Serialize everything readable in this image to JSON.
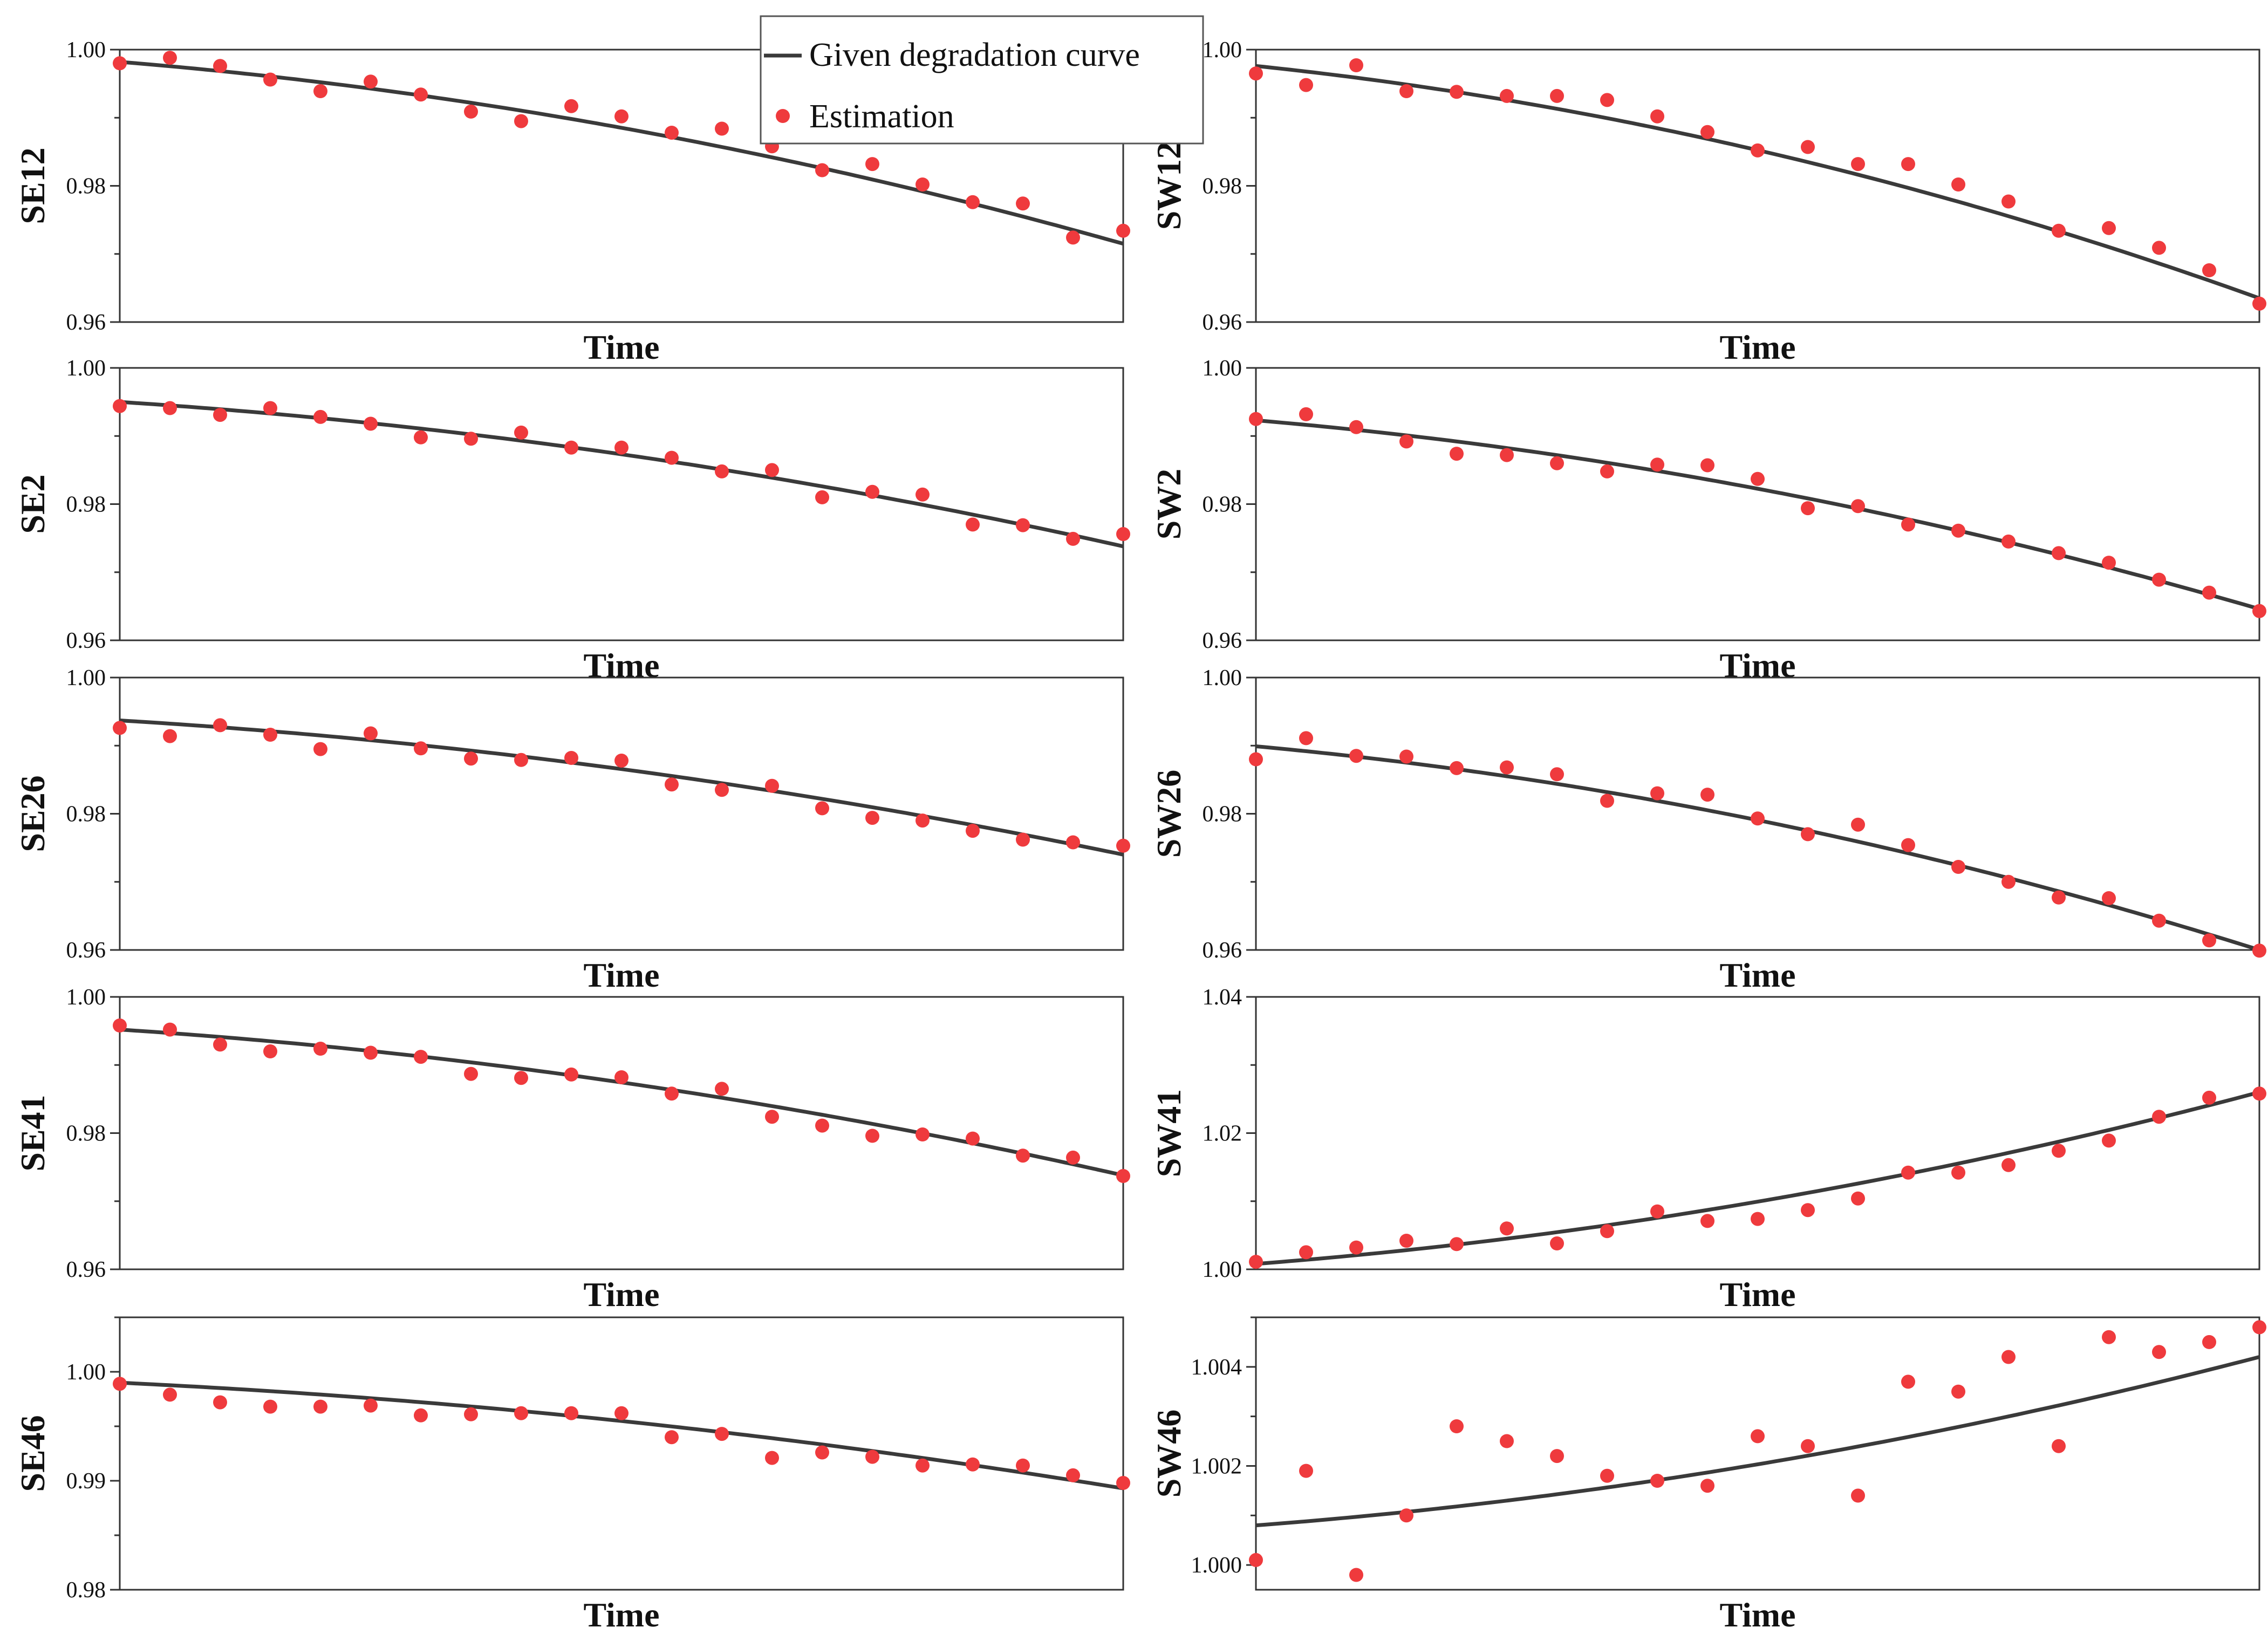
{
  "colors": {
    "curve": "#3a3a3a",
    "estimation": "#ef3a3d",
    "frame": "#333333"
  },
  "legend": {
    "curve_label": "Given degradation curve",
    "points_label": "Estimation"
  },
  "chart_data": [
    {
      "type": "line+scatter",
      "panel": "SE12",
      "title": "",
      "xlabel": "Time",
      "ylabel": "SE12",
      "ylim": [
        0.96,
        1.0
      ],
      "yticks": [
        0.96,
        0.98,
        1.0
      ],
      "yticklabels": [
        "0.96",
        "0.98",
        "1.00"
      ],
      "x": [
        0,
        1,
        2,
        3,
        4,
        5,
        6,
        7,
        8,
        9,
        10,
        11,
        12,
        13,
        14,
        15,
        16,
        17,
        18,
        19,
        20
      ],
      "series": [
        {
          "name": "Given degradation curve",
          "kind": "line",
          "x0": 0,
          "x1": 20,
          "y0": 0.9982,
          "y1": 0.9715
        },
        {
          "name": "Estimation",
          "kind": "scatter",
          "values": [
            0.998,
            0.9988,
            0.9976,
            0.9956,
            0.9939,
            0.9953,
            0.9934,
            0.9909,
            0.9895,
            0.9917,
            0.9902,
            0.9878,
            0.9884,
            0.9858,
            0.9823,
            0.9832,
            0.9802,
            0.9776,
            0.9774,
            0.9724,
            0.9734
          ]
        }
      ]
    },
    {
      "type": "line+scatter",
      "panel": "SW12",
      "title": "",
      "xlabel": "Time",
      "ylabel": "SW12",
      "ylim": [
        0.96,
        1.0
      ],
      "yticks": [
        0.96,
        0.98,
        1.0
      ],
      "yticklabels": [
        "0.96",
        "0.98",
        "1.00"
      ],
      "x": [
        0,
        1,
        2,
        3,
        4,
        5,
        6,
        7,
        8,
        9,
        10,
        11,
        12,
        13,
        14,
        15,
        16,
        17,
        18,
        19,
        20
      ],
      "series": [
        {
          "name": "Given degradation curve",
          "kind": "line",
          "x0": 0,
          "x1": 20,
          "y0": 0.9976,
          "y1": 0.9635
        },
        {
          "name": "Estimation",
          "kind": "scatter",
          "values": [
            0.9965,
            0.9948,
            0.9977,
            0.9939,
            0.9938,
            0.9932,
            0.9932,
            0.9926,
            0.9902,
            0.9879,
            0.9852,
            0.9857,
            0.9832,
            0.9832,
            0.9802,
            0.9777,
            0.9734,
            0.9738,
            0.9709,
            0.9676,
            0.9627
          ]
        }
      ]
    },
    {
      "type": "line+scatter",
      "panel": "SE2",
      "title": "",
      "xlabel": "Time",
      "ylabel": "SE2",
      "ylim": [
        0.96,
        1.0
      ],
      "yticks": [
        0.96,
        0.98,
        1.0
      ],
      "yticklabels": [
        "0.96",
        "0.98",
        "1.00"
      ],
      "x": [
        0,
        1,
        2,
        3,
        4,
        5,
        6,
        7,
        8,
        9,
        10,
        11,
        12,
        13,
        14,
        15,
        16,
        17,
        18,
        19,
        20
      ],
      "series": [
        {
          "name": "Given degradation curve",
          "kind": "line",
          "x0": 0,
          "x1": 20,
          "y0": 0.995,
          "y1": 0.9738
        },
        {
          "name": "Estimation",
          "kind": "scatter",
          "values": [
            0.9944,
            0.9941,
            0.9931,
            0.9941,
            0.9928,
            0.9918,
            0.9898,
            0.9896,
            0.9905,
            0.9883,
            0.9883,
            0.9868,
            0.9848,
            0.985,
            0.981,
            0.9818,
            0.9814,
            0.977,
            0.9769,
            0.9749,
            0.9756
          ]
        }
      ]
    },
    {
      "type": "line+scatter",
      "panel": "SW2",
      "title": "",
      "xlabel": "Time",
      "ylabel": "SW2",
      "ylim": [
        0.96,
        1.0
      ],
      "yticks": [
        0.96,
        0.98,
        1.0
      ],
      "yticklabels": [
        "0.96",
        "0.98",
        "1.00"
      ],
      "x": [
        0,
        1,
        2,
        3,
        4,
        5,
        6,
        7,
        8,
        9,
        10,
        11,
        12,
        13,
        14,
        15,
        16,
        17,
        18,
        19,
        20
      ],
      "series": [
        {
          "name": "Given degradation curve",
          "kind": "line",
          "x0": 0,
          "x1": 20,
          "y0": 0.9923,
          "y1": 0.9646
        },
        {
          "name": "Estimation",
          "kind": "scatter",
          "values": [
            0.9925,
            0.9932,
            0.9913,
            0.9892,
            0.9874,
            0.9872,
            0.986,
            0.9848,
            0.9858,
            0.9857,
            0.9837,
            0.9794,
            0.9797,
            0.977,
            0.9761,
            0.9745,
            0.9728,
            0.9714,
            0.9689,
            0.967,
            0.9643
          ]
        }
      ]
    },
    {
      "type": "line+scatter",
      "panel": "SE26",
      "title": "",
      "xlabel": "Time",
      "ylabel": "SE26",
      "ylim": [
        0.96,
        1.0
      ],
      "yticks": [
        0.96,
        0.98,
        1.0
      ],
      "yticklabels": [
        "0.96",
        "0.98",
        "1.00"
      ],
      "x": [
        0,
        1,
        2,
        3,
        4,
        5,
        6,
        7,
        8,
        9,
        10,
        11,
        12,
        13,
        14,
        15,
        16,
        17,
        18,
        19,
        20
      ],
      "series": [
        {
          "name": "Given degradation curve",
          "kind": "line",
          "x0": 0,
          "x1": 20,
          "y0": 0.9937,
          "y1": 0.974
        },
        {
          "name": "Estimation",
          "kind": "scatter",
          "values": [
            0.9926,
            0.9914,
            0.993,
            0.9916,
            0.9895,
            0.9918,
            0.9896,
            0.9881,
            0.9879,
            0.9882,
            0.9878,
            0.9843,
            0.9835,
            0.9841,
            0.9808,
            0.9794,
            0.979,
            0.9775,
            0.9762,
            0.9758,
            0.9753
          ]
        }
      ]
    },
    {
      "type": "line+scatter",
      "panel": "SW26",
      "title": "",
      "xlabel": "Time",
      "ylabel": "SW26",
      "ylim": [
        0.96,
        1.0
      ],
      "yticks": [
        0.96,
        0.98,
        1.0
      ],
      "yticklabels": [
        "0.96",
        "0.98",
        "1.00"
      ],
      "x": [
        0,
        1,
        2,
        3,
        4,
        5,
        6,
        7,
        8,
        9,
        10,
        11,
        12,
        13,
        14,
        15,
        16,
        17,
        18,
        19,
        20
      ],
      "series": [
        {
          "name": "Given degradation curve",
          "kind": "line",
          "x0": 0,
          "x1": 20,
          "y0": 0.9899,
          "y1": 0.96
        },
        {
          "name": "Estimation",
          "kind": "scatter",
          "values": [
            0.988,
            0.9911,
            0.9885,
            0.9884,
            0.9867,
            0.9868,
            0.9858,
            0.9819,
            0.983,
            0.9828,
            0.9793,
            0.977,
            0.9784,
            0.9754,
            0.9722,
            0.97,
            0.9677,
            0.9676,
            0.9643,
            0.9614,
            0.9599
          ]
        }
      ]
    },
    {
      "type": "line+scatter",
      "panel": "SE41",
      "title": "",
      "xlabel": "Time",
      "ylabel": "SE41",
      "ylim": [
        0.96,
        1.0
      ],
      "yticks": [
        0.96,
        0.98,
        1.0
      ],
      "yticklabels": [
        "0.96",
        "0.98",
        "1.00"
      ],
      "x": [
        0,
        1,
        2,
        3,
        4,
        5,
        6,
        7,
        8,
        9,
        10,
        11,
        12,
        13,
        14,
        15,
        16,
        17,
        18,
        19,
        20
      ],
      "series": [
        {
          "name": "Given degradation curve",
          "kind": "line",
          "x0": 0,
          "x1": 20,
          "y0": 0.9952,
          "y1": 0.9738
        },
        {
          "name": "Estimation",
          "kind": "scatter",
          "values": [
            0.9958,
            0.9952,
            0.993,
            0.992,
            0.9924,
            0.9918,
            0.9912,
            0.9887,
            0.9881,
            0.9886,
            0.9882,
            0.9858,
            0.9865,
            0.9824,
            0.9811,
            0.9796,
            0.9798,
            0.9792,
            0.9767,
            0.9764,
            0.9737
          ]
        }
      ]
    },
    {
      "type": "line+scatter",
      "panel": "SW41",
      "title": "",
      "xlabel": "Time",
      "ylabel": "SW41",
      "ylim": [
        1.0,
        1.04
      ],
      "yticks": [
        1.0,
        1.02,
        1.04
      ],
      "yticklabels": [
        "1.00",
        "1.02",
        "1.04"
      ],
      "x": [
        0,
        1,
        2,
        3,
        4,
        5,
        6,
        7,
        8,
        9,
        10,
        11,
        12,
        13,
        14,
        15,
        16,
        17,
        18,
        19,
        20
      ],
      "series": [
        {
          "name": "Given degradation curve",
          "kind": "line",
          "x0": 0,
          "x1": 20,
          "y0": 1.0008,
          "y1": 1.026
        },
        {
          "name": "Estimation",
          "kind": "scatter",
          "values": [
            1.0011,
            1.0025,
            1.0032,
            1.0042,
            1.0037,
            1.006,
            1.0038,
            1.0056,
            1.0085,
            1.0071,
            1.0074,
            1.0087,
            1.0104,
            1.0142,
            1.0142,
            1.0153,
            1.0174,
            1.0189,
            1.0224,
            1.0252,
            1.0258
          ]
        }
      ]
    },
    {
      "type": "line+scatter",
      "panel": "SE46",
      "title": "",
      "xlabel": "Time",
      "ylabel": "SE46",
      "ylim": [
        0.98,
        1.005
      ],
      "yticks": [
        0.98,
        0.99,
        1.0
      ],
      "yticklabels": [
        "0.98",
        "0.99",
        "1.00"
      ],
      "x": [
        0,
        1,
        2,
        3,
        4,
        5,
        6,
        7,
        8,
        9,
        10,
        11,
        12,
        13,
        14,
        15,
        16,
        17,
        18,
        19,
        20
      ],
      "series": [
        {
          "name": "Given degradation curve",
          "kind": "line",
          "x0": 0,
          "x1": 20,
          "y0": 0.999,
          "y1": 0.9893
        },
        {
          "name": "Estimation",
          "kind": "scatter",
          "values": [
            0.9989,
            0.9979,
            0.9972,
            0.9968,
            0.9968,
            0.9969,
            0.996,
            0.9961,
            0.9962,
            0.9962,
            0.9962,
            0.994,
            0.9943,
            0.9921,
            0.9926,
            0.9922,
            0.9914,
            0.9915,
            0.9914,
            0.9905,
            0.9898
          ]
        }
      ]
    },
    {
      "type": "line+scatter",
      "panel": "SW46",
      "title": "",
      "xlabel": "Time",
      "ylabel": "SW46",
      "ylim": [
        0.9995,
        1.005
      ],
      "yticks": [
        1.0,
        1.002,
        1.004
      ],
      "yticklabels": [
        "1.000",
        "1.002",
        "1.004"
      ],
      "x": [
        0,
        1,
        2,
        3,
        4,
        5,
        6,
        7,
        8,
        9,
        10,
        11,
        12,
        13,
        14,
        15,
        16,
        17,
        18,
        19,
        20
      ],
      "series": [
        {
          "name": "Given degradation curve",
          "kind": "line",
          "x0": 0,
          "x1": 20,
          "y0": 1.0008,
          "y1": 1.0042
        },
        {
          "name": "Estimation",
          "kind": "scatter",
          "values": [
            1.0001,
            1.0019,
            0.9998,
            1.001,
            1.0028,
            1.0025,
            1.0022,
            1.0018,
            1.0017,
            1.0016,
            1.0026,
            1.0024,
            1.0014,
            1.0037,
            1.0035,
            1.0042,
            1.0024,
            1.0046,
            1.0043,
            1.0045,
            1.0048
          ]
        }
      ]
    }
  ]
}
